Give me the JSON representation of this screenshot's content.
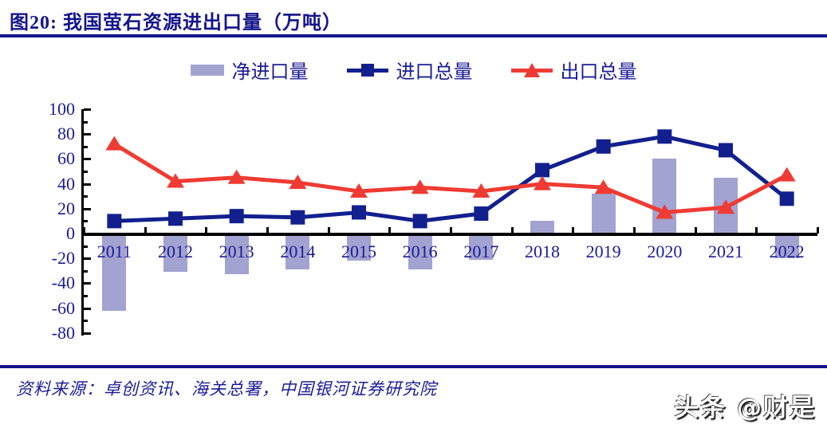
{
  "header": {
    "title": "图20:  我国萤石资源进出口量（万吨）"
  },
  "legend": [
    {
      "label": "净进口量",
      "marker": "bar",
      "color": "#a2a3d0"
    },
    {
      "label": "进口总量",
      "marker": "square",
      "color": "#12208e"
    },
    {
      "label": "出口总量",
      "marker": "triangle",
      "color": "#ef3b33"
    }
  ],
  "chart_data": {
    "type": "combo",
    "title": "图20: 我国萤石资源进出口量（万吨）",
    "unit": "万吨",
    "categories": [
      "2011",
      "2012",
      "2013",
      "2014",
      "2015",
      "2016",
      "2017",
      "2018",
      "2019",
      "2020",
      "2021",
      "2022"
    ],
    "series": [
      {
        "name": "净进口量",
        "kind": "bar",
        "marker": "none",
        "color": "#a2a3d0",
        "values": [
          -62,
          -31,
          -33,
          -29,
          -22,
          -29,
          -21,
          10,
          32,
          60,
          45,
          -20
        ]
      },
      {
        "name": "进口总量",
        "kind": "line",
        "marker": "square",
        "color": "#12208e",
        "values": [
          10,
          12,
          14,
          13,
          17,
          10,
          16,
          51,
          70,
          78,
          67,
          28
        ]
      },
      {
        "name": "出口总量",
        "kind": "line",
        "marker": "triangle",
        "color": "#ef3b33",
        "values": [
          72,
          42,
          45,
          41,
          34,
          37,
          34,
          40,
          37,
          17,
          21,
          47
        ]
      }
    ],
    "xlabel": "",
    "ylabel": "",
    "ylim": [
      -80,
      100
    ],
    "ytick_step": 20,
    "ytick_labels": [
      "100",
      "80",
      "60",
      "40",
      "20",
      "0",
      "-20",
      "-40",
      "-60",
      "-80"
    ],
    "grid": false,
    "legend_position": "top-center"
  },
  "colors": {
    "navy_text": "#1c1c96",
    "title_navy": "#14148c",
    "bar_lavender": "#a2a3d0",
    "line_navy": "#12208e",
    "line_red": "#ef3b33",
    "axis_black": "#000000"
  },
  "footer": {
    "source": "资料来源：卓创资讯、海关总署，中国银河证券研究院"
  },
  "watermark": {
    "text": "头条 @财是"
  }
}
